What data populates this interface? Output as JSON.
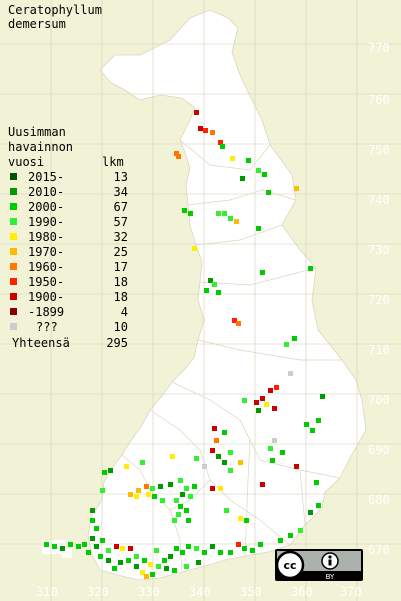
{
  "title": {
    "line1": "Ceratophyllum",
    "line2": "demersum"
  },
  "legend": {
    "heading": [
      "Uusimman",
      "havainnon",
      "vuosi"
    ],
    "count_header": "lkm",
    "items": [
      {
        "label": "2015-",
        "count": "13",
        "color": "#005500"
      },
      {
        "label": "2010-",
        "count": "34",
        "color": "#009900"
      },
      {
        "label": "2000-",
        "count": "67",
        "color": "#00cc00"
      },
      {
        "label": "1990-",
        "count": "57",
        "color": "#33ee33"
      },
      {
        "label": "1980-",
        "count": "32",
        "color": "#ffee00"
      },
      {
        "label": "1970-",
        "count": "25",
        "color": "#ffbb00"
      },
      {
        "label": "1960-",
        "count": "17",
        "color": "#ff7700"
      },
      {
        "label": "1950-",
        "count": "18",
        "color": "#ff2200"
      },
      {
        "label": "1900-",
        "count": "18",
        "color": "#cc0000"
      },
      {
        "label": "-1899",
        "count": "4",
        "color": "#880000"
      },
      {
        "label": "???",
        "count": "10",
        "color": "#cccccc"
      }
    ],
    "total_label": "Yhteensä",
    "total_count": "295"
  },
  "y_axis_labels": [
    "770",
    "760",
    "750",
    "740",
    "730",
    "720",
    "710",
    "700",
    "690",
    "680",
    "670"
  ],
  "x_axis_labels": [
    "310",
    "320",
    "330",
    "340",
    "350",
    "360",
    "370"
  ],
  "license_badge": {
    "left": "cc",
    "right": "BY"
  },
  "colors": {
    "background": "#f2f2d6",
    "land": "#ffffff",
    "grid_label": "#ffffff"
  }
}
